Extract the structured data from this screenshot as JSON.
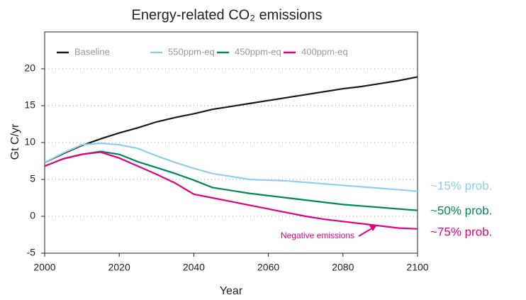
{
  "chart_data": {
    "type": "line",
    "title": "Energy-related CO₂ emissions",
    "x_label": "Year",
    "y_label": "Gt C/yr",
    "x": [
      2000,
      2005,
      2010,
      2015,
      2020,
      2025,
      2030,
      2035,
      2040,
      2045,
      2050,
      2055,
      2060,
      2065,
      2070,
      2075,
      2080,
      2085,
      2090,
      2095,
      2100
    ],
    "series": [
      {
        "name": "Baseline",
        "color": "#1a1a1a",
        "values": [
          7.3,
          8.5,
          9.6,
          10.5,
          11.3,
          12.0,
          12.8,
          13.4,
          13.9,
          14.5,
          14.9,
          15.3,
          15.7,
          16.1,
          16.5,
          16.9,
          17.3,
          17.6,
          18.0,
          18.4,
          18.9
        ]
      },
      {
        "name": "550ppm-eq",
        "color": "#8ecfee",
        "end_label": "~15% prob.",
        "values": [
          7.3,
          8.6,
          9.7,
          9.9,
          9.7,
          9.2,
          8.2,
          7.3,
          6.5,
          5.8,
          5.4,
          5.0,
          4.9,
          4.8,
          4.6,
          4.4,
          4.2,
          4.0,
          3.8,
          3.6,
          3.4
        ]
      },
      {
        "name": "450ppm-eq",
        "color": "#00875a",
        "end_label": "~50% prob.",
        "values": [
          6.8,
          7.8,
          8.4,
          8.8,
          8.4,
          7.4,
          6.6,
          5.8,
          4.9,
          3.9,
          3.5,
          3.1,
          2.8,
          2.5,
          2.2,
          1.9,
          1.6,
          1.4,
          1.2,
          1.0,
          0.8
        ]
      },
      {
        "name": "400ppm-eq",
        "color": "#e6007e",
        "end_label": "~75% prob.",
        "values": [
          6.8,
          7.8,
          8.4,
          8.7,
          7.9,
          6.8,
          5.7,
          4.5,
          3.0,
          2.5,
          2.0,
          1.5,
          1.0,
          0.5,
          0.0,
          -0.4,
          -0.7,
          -1.0,
          -1.3,
          -1.6,
          -1.7
        ]
      }
    ],
    "annotation": "Negative emissions",
    "xlim": [
      2000,
      2100
    ],
    "xticks": [
      2000,
      2020,
      2040,
      2060,
      2080,
      2100
    ],
    "ylim": [
      -5,
      25
    ],
    "yticks": [
      -5,
      0,
      5,
      10,
      15,
      20
    ],
    "grid": true
  }
}
